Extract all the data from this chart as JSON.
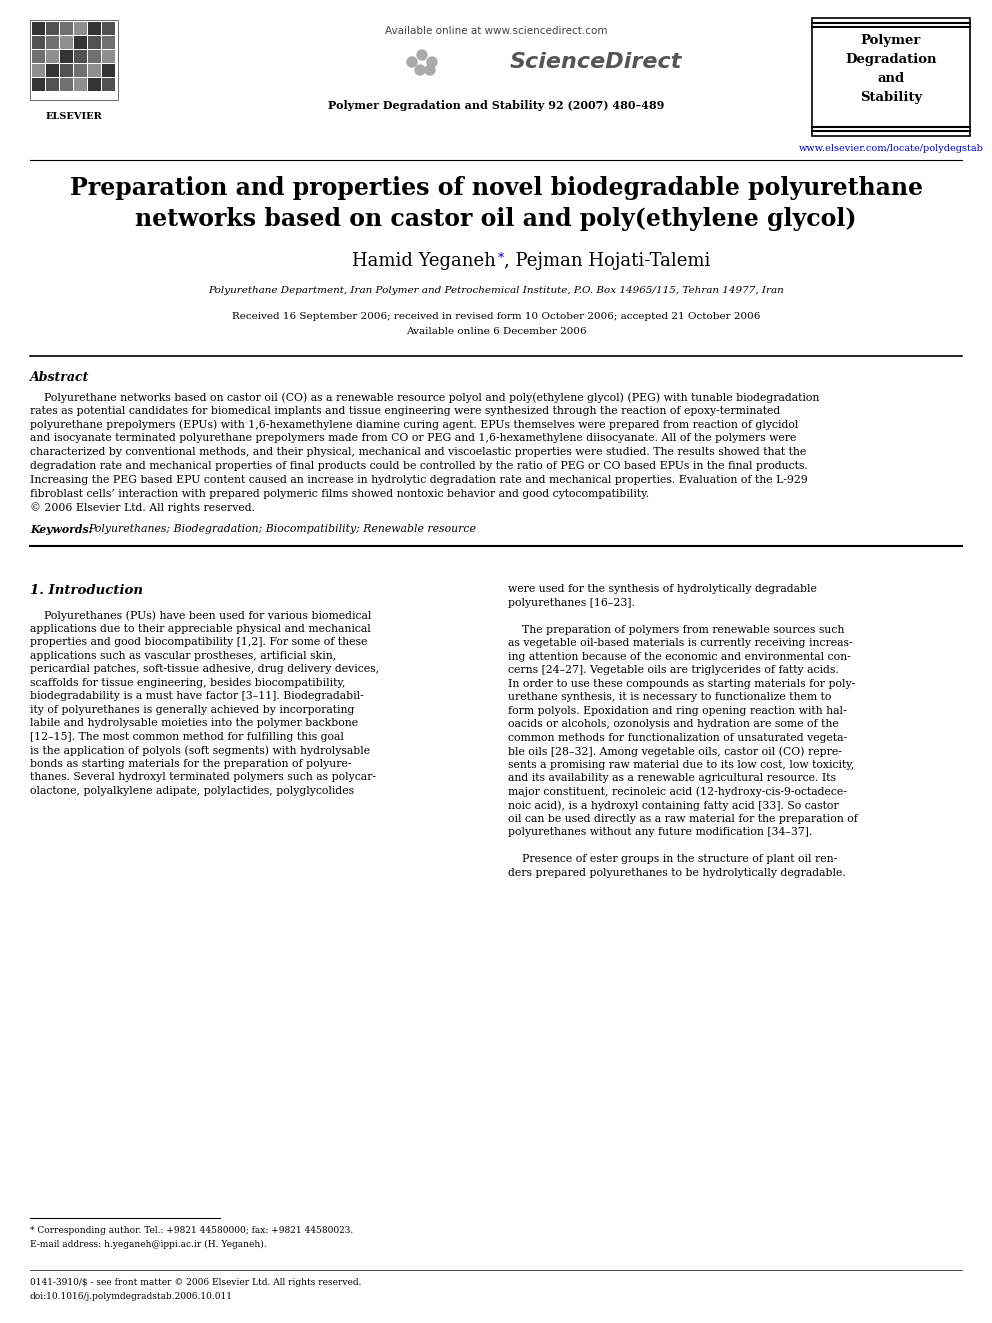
{
  "background_color": "#ffffff",
  "header_available_text": "Available online at www.sciencedirect.com",
  "journal_name": "Polymer Degradation and Stability 92 (2007) 480–489",
  "journal_box_title": "Polymer\nDegradation\nand\nStability",
  "journal_url": "www.elsevier.com/locate/polydegstab",
  "title_line1": "Preparation and properties of novel biodegradable polyurethane",
  "title_line2": "networks based on castor oil and poly(ethylene glycol)",
  "authors_part1": "Hamid Yeganeh",
  "authors_star": "*",
  "authors_part2": ", Pejman Hojati-Talemi",
  "affiliation": "Polyurethane Department, Iran Polymer and Petrochemical Institute, P.O. Box 14965/115, Tehran 14977, Iran",
  "received_text": "Received 16 September 2006; received in revised form 10 October 2006; accepted 21 October 2006",
  "available_online": "Available online 6 December 2006",
  "abstract_heading": "Abstract",
  "abstract_lines": [
    "    Polyurethane networks based on castor oil (CO) as a renewable resource polyol and poly(ethylene glycol) (PEG) with tunable biodegradation",
    "rates as potential candidates for biomedical implants and tissue engineering were synthesized through the reaction of epoxy-terminated",
    "polyurethane prepolymers (EPUs) with 1,6-hexamethylene diamine curing agent. EPUs themselves were prepared from reaction of glycidol",
    "and isocyanate terminated polyurethane prepolymers made from CO or PEG and 1,6-hexamethylene diisocyanate. All of the polymers were",
    "characterized by conventional methods, and their physical, mechanical and viscoelastic properties were studied. The results showed that the",
    "degradation rate and mechanical properties of final products could be controlled by the ratio of PEG or CO based EPUs in the final products.",
    "Increasing the PEG based EPU content caused an increase in hydrolytic degradation rate and mechanical properties. Evaluation of the L-929",
    "fibroblast cells’ interaction with prepared polymeric films showed nontoxic behavior and good cytocompatibility.",
    "© 2006 Elsevier Ltd. All rights reserved."
  ],
  "keywords_label": "Keywords: ",
  "keywords_text": "Polyurethanes; Biodegradation; Biocompatibility; Renewable resource",
  "section1_heading": "1. Introduction",
  "left_col_lines": [
    "    Polyurethanes (PUs) have been used for various biomedical",
    "applications due to their appreciable physical and mechanical",
    "properties and good biocompatibility [1,2]. For some of these",
    "applications such as vascular prostheses, artificial skin,",
    "pericardial patches, soft-tissue adhesive, drug delivery devices,",
    "scaffolds for tissue engineering, besides biocompatibility,",
    "biodegradability is a must have factor [3–11]. Biodegradabil-",
    "ity of polyurethanes is generally achieved by incorporating",
    "labile and hydrolysable moieties into the polymer backbone",
    "[12–15]. The most common method for fulfilling this goal",
    "is the application of polyols (soft segments) with hydrolysable",
    "bonds as starting materials for the preparation of polyure-",
    "thanes. Several hydroxyl terminated polymers such as polycar-",
    "olactone, polyalkylene adipate, polylactides, polyglycolides"
  ],
  "right_col_lines": [
    "were used for the synthesis of hydrolytically degradable",
    "polyurethanes [16–23].",
    "",
    "    The preparation of polymers from renewable sources such",
    "as vegetable oil-based materials is currently receiving increas-",
    "ing attention because of the economic and environmental con-",
    "cerns [24–27]. Vegetable oils are triglycerides of fatty acids.",
    "In order to use these compounds as starting materials for poly-",
    "urethane synthesis, it is necessary to functionalize them to",
    "form polyols. Epoxidation and ring opening reaction with hal-",
    "oacids or alcohols, ozonolysis and hydration are some of the",
    "common methods for functionalization of unsaturated vegeta-",
    "ble oils [28–32]. Among vegetable oils, castor oil (CO) repre-",
    "sents a promising raw material due to its low cost, low toxicity,",
    "and its availability as a renewable agricultural resource. Its",
    "major constituent, recinoleic acid (12-hydroxy-cis-9-octadece-",
    "noic acid), is a hydroxyl containing fatty acid [33]. So castor",
    "oil can be used directly as a raw material for the preparation of",
    "polyurethanes without any future modification [34–37].",
    "",
    "    Presence of ester groups in the structure of plant oil ren-",
    "ders prepared polyurethanes to be hydrolytically degradable."
  ],
  "footer_text1": "* Corresponding author. Tel.: +9821 44580000; fax: +9821 44580023.",
  "footer_text2": "E-mail address: h.yeganeh@ippi.ac.ir (H. Yeganeh).",
  "footer_text3": "0141-3910/$ - see front matter © 2006 Elsevier Ltd. All rights reserved.",
  "footer_text4": "doi:10.1016/j.polymdegradstab.2006.10.011",
  "elsevier_text": "ELSEVIER",
  "sciencedirect_text": "ScienceDirect",
  "line_color": "#000000",
  "blue_color": "#0000cc",
  "gray_color": "#888888"
}
